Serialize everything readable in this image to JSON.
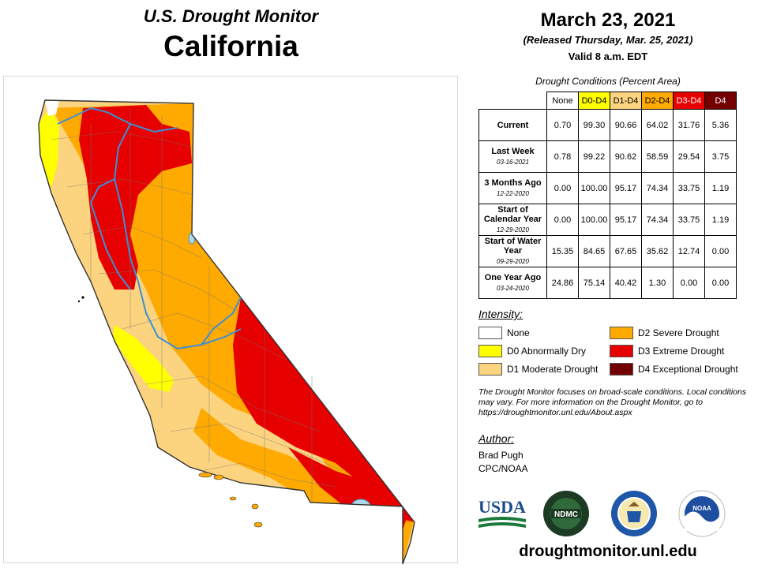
{
  "header": {
    "subtitle": "U.S. Drought Monitor",
    "state": "California",
    "date": "March 23, 2021",
    "release": "(Released Thursday, Mar. 25, 2021)",
    "valid": "Valid 8 a.m. EDT"
  },
  "table": {
    "caption": "Drought Conditions (Percent Area)",
    "columns": [
      "None",
      "D0-D4",
      "D1-D4",
      "D2-D4",
      "D3-D4",
      "D4"
    ],
    "column_colors": [
      "#ffffff",
      "#ffff00",
      "#fcd37f",
      "#ffaa00",
      "#e60000",
      "#730000"
    ],
    "rows": [
      {
        "label": "Current",
        "date": "",
        "values": [
          "0.70",
          "99.30",
          "90.66",
          "64.02",
          "31.76",
          "5.36"
        ]
      },
      {
        "label": "Last Week",
        "date": "03-16-2021",
        "values": [
          "0.78",
          "99.22",
          "90.62",
          "58.59",
          "29.54",
          "3.75"
        ]
      },
      {
        "label": "3 Months Ago",
        "date": "12-22-2020",
        "values": [
          "0.00",
          "100.00",
          "95.17",
          "74.34",
          "33.75",
          "1.19"
        ]
      },
      {
        "label": "Start of Calendar Year",
        "date": "12-29-2020",
        "values": [
          "0.00",
          "100.00",
          "95.17",
          "74.34",
          "33.75",
          "1.19"
        ]
      },
      {
        "label": "Start of Water Year",
        "date": "09-29-2020",
        "values": [
          "15.35",
          "84.65",
          "67.65",
          "35.62",
          "12.74",
          "0.00"
        ]
      },
      {
        "label": "One Year Ago",
        "date": "03-24-2020",
        "values": [
          "24.86",
          "75.14",
          "40.42",
          "1.30",
          "0.00",
          "0.00"
        ]
      }
    ]
  },
  "intensity": {
    "title": "Intensity:",
    "items": [
      {
        "label": "None",
        "color": "#ffffff"
      },
      {
        "label": "D0 Abnormally Dry",
        "color": "#ffff00"
      },
      {
        "label": "D1 Moderate Drought",
        "color": "#fcd37f"
      },
      {
        "label": "D2 Severe Drought",
        "color": "#ffaa00"
      },
      {
        "label": "D3 Extreme Drought",
        "color": "#e60000"
      },
      {
        "label": "D4 Exceptional Drought",
        "color": "#730000"
      }
    ]
  },
  "note": "The Drought Monitor focuses on broad-scale conditions. Local conditions may vary. For more information on the Drought Monitor, go to https://droughtmonitor.unl.edu/About.aspx",
  "author": {
    "title": "Author:",
    "name": "Brad Pugh",
    "org": "CPC/NOAA"
  },
  "logos": [
    {
      "name": "usda-logo",
      "text": "USDA"
    },
    {
      "name": "ndmc-logo",
      "text": "NDMC"
    },
    {
      "name": "doc-seal-logo"
    },
    {
      "name": "noaa-logo",
      "text": "NOAA"
    }
  ],
  "website": "droughtmonitor.unl.edu"
}
